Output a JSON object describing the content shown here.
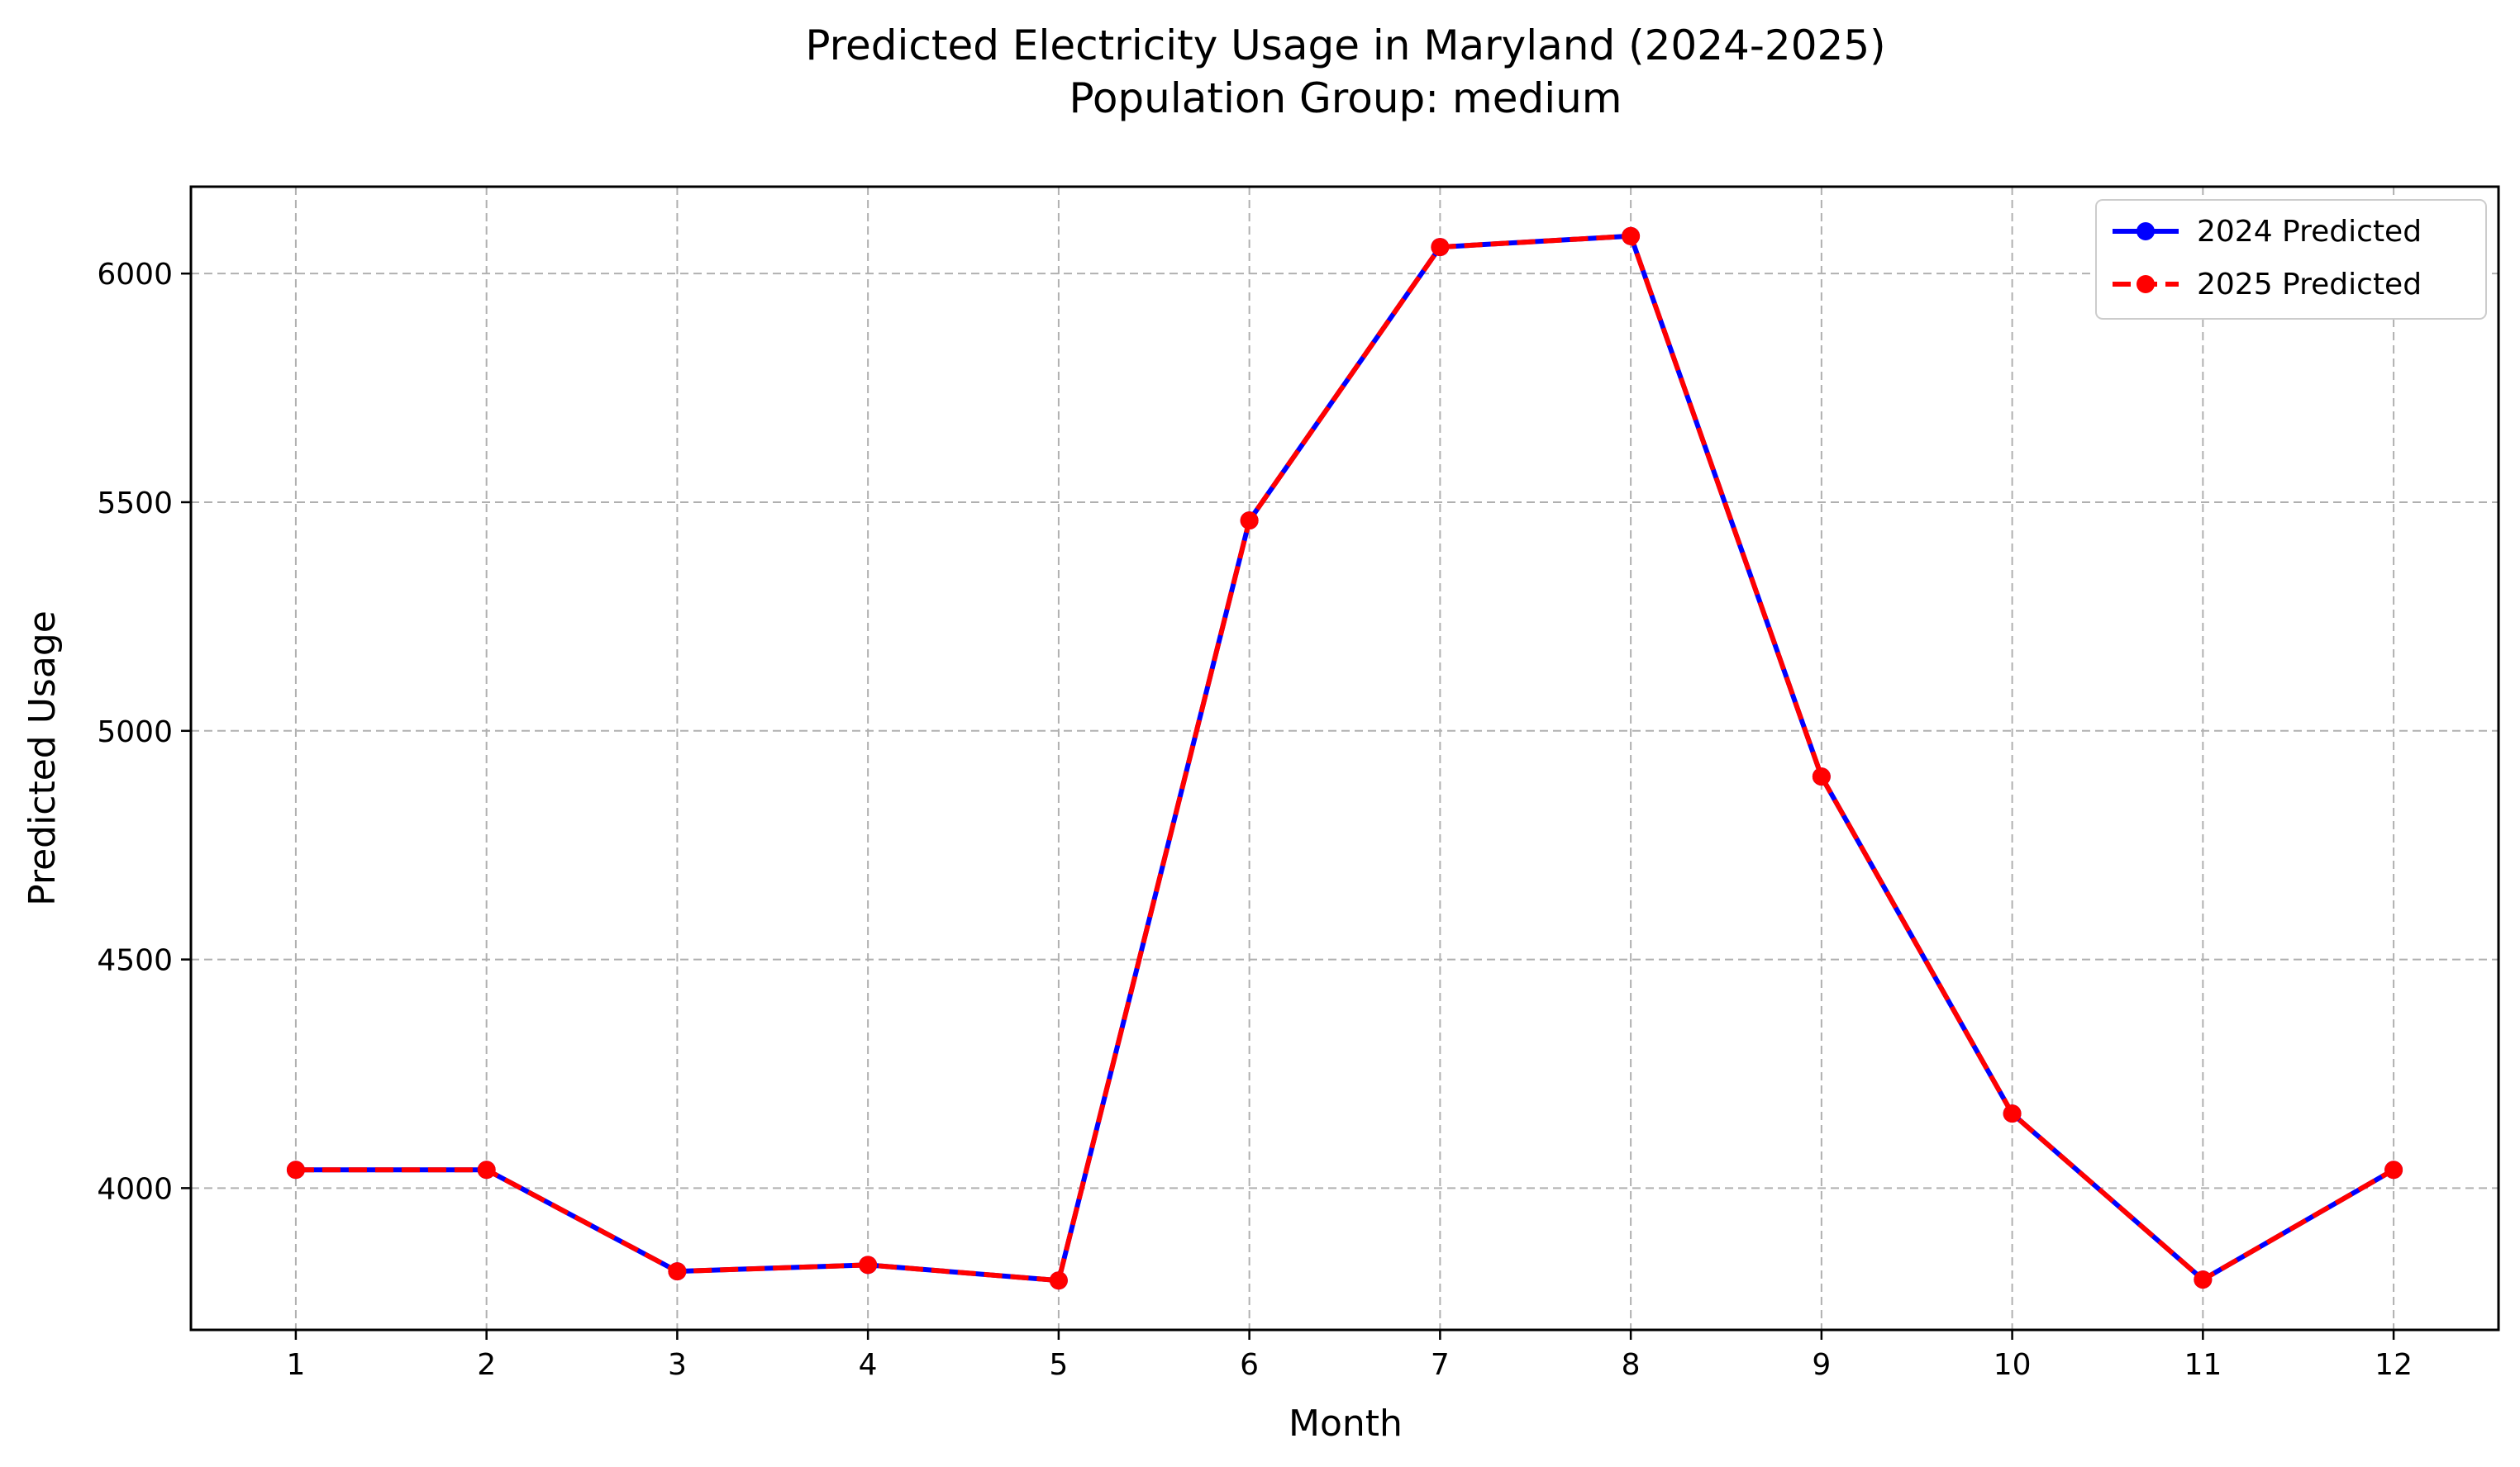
{
  "chart_data": {
    "type": "line",
    "title": "Predicted Electricity Usage in Maryland (2024-2025)",
    "subtitle": "Population Group: medium",
    "xlabel": "Month",
    "ylabel": "Predicted Usage",
    "x": [
      1,
      2,
      3,
      4,
      5,
      6,
      7,
      8,
      9,
      10,
      11,
      12
    ],
    "xlim": [
      0.45,
      12.55
    ],
    "ylim": [
      3690,
      6190
    ],
    "yticks": [
      4000,
      4500,
      5000,
      5500,
      6000
    ],
    "grid": true,
    "legend_position": "top-right",
    "series": [
      {
        "name": "2024 Predicted",
        "color": "#0000ff",
        "line_style": "solid",
        "marker": "circle",
        "values": [
          4040,
          4040,
          3818,
          3832,
          3798,
          5460,
          6058,
          6082,
          4900,
          4163,
          3800,
          4040
        ]
      },
      {
        "name": "2025 Predicted",
        "color": "#ff0000",
        "line_style": "dashed",
        "marker": "circle",
        "values": [
          4040,
          4040,
          3818,
          3832,
          3798,
          5460,
          6058,
          6082,
          4900,
          4163,
          3800,
          4040
        ]
      }
    ]
  }
}
